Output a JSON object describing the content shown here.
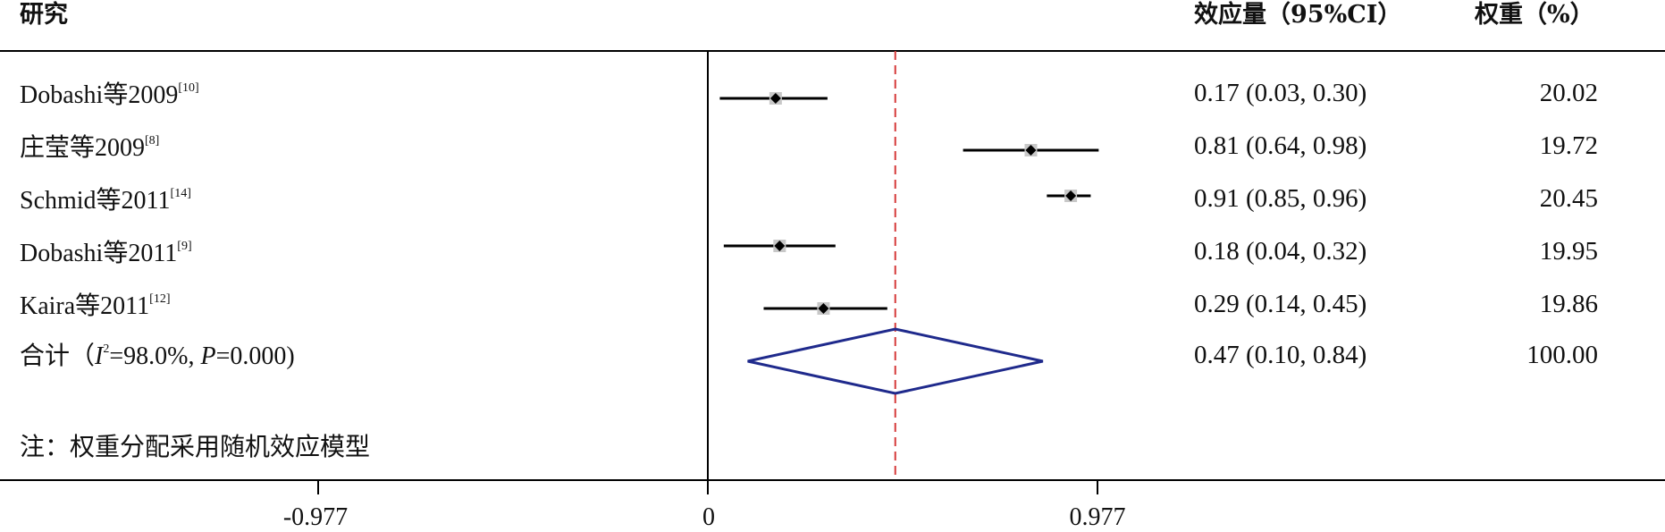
{
  "header": {
    "study_col": "研究",
    "effect_col": "效应量（95%CI）",
    "weight_col": "权重（%）"
  },
  "studies": [
    {
      "label": "Dobashi等2009",
      "ref": "[10]",
      "effect_text": "0.17 (0.03, 0.30)",
      "weight_text": "20.02"
    },
    {
      "label": "庄莹等2009",
      "ref": "[8]",
      "effect_text": "0.81 (0.64, 0.98)",
      "weight_text": "19.72"
    },
    {
      "label": "Schmid等2011",
      "ref": "[14]",
      "effect_text": "0.91 (0.85, 0.96)",
      "weight_text": "20.45"
    },
    {
      "label": "Dobashi等2011",
      "ref": "[9]",
      "effect_text": "0.18 (0.04, 0.32)",
      "weight_text": "19.95"
    },
    {
      "label": "Kaira等2011",
      "ref": "[12]",
      "effect_text": "0.29 (0.14, 0.45)",
      "weight_text": "19.86"
    }
  ],
  "summary": {
    "label_prefix": "合计（",
    "i_symbol": "I",
    "i_sup": "2",
    "i_value": "=98.0%,",
    "p_symbol": "P",
    "p_value": "=0.000)",
    "effect_text": "0.47 (0.10, 0.84)",
    "weight_text": "100.00"
  },
  "note": "注：权重分配采用随机效应模型",
  "axis": {
    "ticks": [
      "-0.977",
      "0",
      "0.977"
    ]
  },
  "colors": {
    "ci_line": "#000000",
    "weight_box": "#c8c8c8",
    "diamond": "#1f2a8c",
    "ref_line": "#d63a3a",
    "frame": "#000000"
  },
  "chart_data": {
    "type": "forest",
    "x_axis": {
      "ticks": [
        -0.977,
        0,
        0.977
      ],
      "lim": [
        -1.22,
        2.35
      ]
    },
    "reference_line": 0,
    "overall_line": 0.47,
    "studies": [
      {
        "name": "Dobashi等2009",
        "est": 0.17,
        "lo": 0.03,
        "hi": 0.3,
        "weight": 20.02
      },
      {
        "name": "庄莹等2009",
        "est": 0.81,
        "lo": 0.64,
        "hi": 0.98,
        "weight": 19.72
      },
      {
        "name": "Schmid等2011",
        "est": 0.91,
        "lo": 0.85,
        "hi": 0.96,
        "weight": 20.45
      },
      {
        "name": "Dobashi等2011",
        "est": 0.18,
        "lo": 0.04,
        "hi": 0.32,
        "weight": 19.95
      },
      {
        "name": "Kaira等2011",
        "est": 0.29,
        "lo": 0.14,
        "hi": 0.45,
        "weight": 19.86
      }
    ],
    "summary": {
      "est": 0.47,
      "lo": 0.1,
      "hi": 0.84,
      "weight": 100.0
    }
  }
}
